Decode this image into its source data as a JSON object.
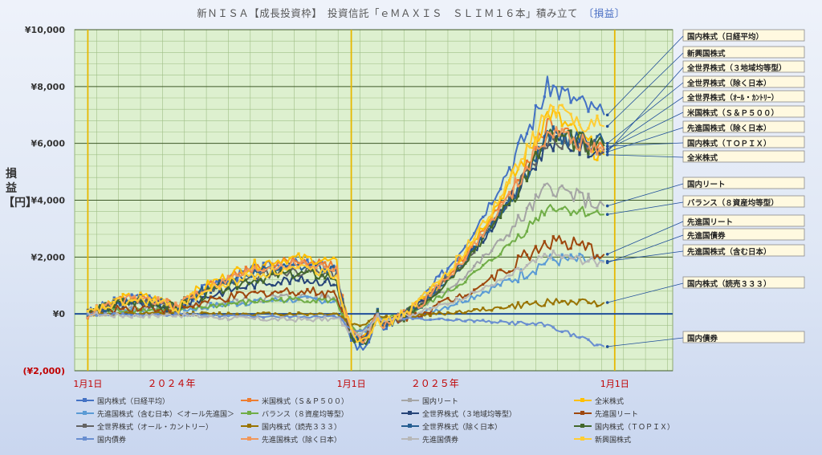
{
  "title": "新ＮＩＳＡ【成長投資枠】　投資信託「ｅＭＡＸＩＳ　ＳＬＩＭ１６本」積み立て",
  "title_tag": "〔損益〕",
  "chart_data": {
    "type": "line",
    "ylabel": "損益【円】",
    "ylim": [
      -2000,
      10000
    ],
    "yticks": [
      {
        "v": 10000,
        "label": "¥10,000"
      },
      {
        "v": 8000,
        "label": "¥8,000"
      },
      {
        "v": 6000,
        "label": "¥6,000"
      },
      {
        "v": 4000,
        "label": "¥4,000"
      },
      {
        "v": 2000,
        "label": "¥2,000"
      },
      {
        "v": 0,
        "label": "¥0"
      },
      {
        "v": -2000,
        "label": "(¥2,000)"
      }
    ],
    "xticks": [
      {
        "t": 0,
        "label": "1月1日"
      },
      {
        "t": 1,
        "label": "1月1日"
      },
      {
        "t": 2,
        "label": "1月1日"
      }
    ],
    "year_labels": [
      {
        "t": 0.5,
        "label": "２０２４年"
      },
      {
        "t": 1.5,
        "label": "２０２５年"
      }
    ],
    "xlim": [
      -0.05,
      2.22
    ],
    "grid": true,
    "series": [
      {
        "name": "国内株式（日経平均）",
        "color": "#4472c4",
        "end": 7000,
        "peak": 8050,
        "mid": 1750,
        "dip": -1700,
        "noise": 1.0
      },
      {
        "name": "米国株式（Ｓ＆Ｐ５００）",
        "color": "#ed7d31",
        "end": 5800,
        "peak": 6700,
        "mid": 1850,
        "dip": -1450,
        "noise": 0.8
      },
      {
        "name": "国内リート",
        "color": "#a5a5a5",
        "end": 3800,
        "peak": 4500,
        "mid": 600,
        "dip": -1100,
        "noise": 0.7
      },
      {
        "name": "全米株式",
        "color": "#ffc000",
        "end": 5600,
        "peak": 7100,
        "mid": 1950,
        "dip": -1450,
        "noise": 0.9
      },
      {
        "name": "先進国株式（含む日本）＜オール先進国＞",
        "color": "#5b9bd5",
        "end": 1850,
        "peak": 1900,
        "mid": 500,
        "dip": -900,
        "noise": 0.6
      },
      {
        "name": "バランス（８資産均等型）",
        "color": "#70ad47",
        "end": 3500,
        "peak": 3800,
        "mid": 500,
        "dip": -800,
        "noise": 0.5
      },
      {
        "name": "全世界株式（３地域均等型）",
        "color": "#264478",
        "end": 5700,
        "peak": 6100,
        "mid": 1200,
        "dip": -1300,
        "noise": 0.8
      },
      {
        "name": "先進国リート",
        "color": "#9e480e",
        "end": 2100,
        "peak": 2600,
        "mid": 800,
        "dip": -1000,
        "noise": 0.8
      },
      {
        "name": "全世界株式（オール・カントリー）",
        "color": "#636363",
        "end": 5800,
        "peak": 6200,
        "mid": 1500,
        "dip": -1350,
        "noise": 0.8
      },
      {
        "name": "国内株式（読売３３３）",
        "color": "#997300",
        "end": 400,
        "peak": 420,
        "mid": 0,
        "dip": -400,
        "noise": 0.3
      },
      {
        "name": "全世界株式（除く日本）",
        "color": "#255e91",
        "end": 6000,
        "peak": 6300,
        "mid": 1650,
        "dip": -1400,
        "noise": 0.8
      },
      {
        "name": "国内株式（ＴＯＰＩＸ）",
        "color": "#43682b",
        "end": 5900,
        "peak": 6200,
        "mid": 1400,
        "dip": -1500,
        "noise": 0.9
      },
      {
        "name": "国内債券",
        "color": "#698ed0",
        "end": -1150,
        "peak": -400,
        "mid": -100,
        "dip": -600,
        "noise": 0.2
      },
      {
        "name": "先進国株式（除く日本）",
        "color": "#f1975a",
        "end": 5700,
        "peak": 6500,
        "mid": 1750,
        "dip": -1400,
        "noise": 0.8
      },
      {
        "name": "先進国債券",
        "color": "#b7b7b7",
        "end": 1800,
        "peak": 2100,
        "mid": -200,
        "dip": -700,
        "noise": 0.4
      },
      {
        "name": "新興国株式",
        "color": "#ffcd33",
        "end": 6600,
        "peak": 7200,
        "mid": 1550,
        "dip": -1300,
        "noise": 0.9
      }
    ],
    "callouts": [
      {
        "label": "国内株式（日経平均）",
        "target": "国内株式（日経平均）"
      },
      {
        "label": "新興国株式",
        "target": "新興国株式"
      },
      {
        "label": "全世界株式（３地域均等型）",
        "target": "全世界株式（３地域均等型）"
      },
      {
        "label": "全世界株式（除く日本）",
        "target": "全世界株式（除く日本）"
      },
      {
        "label": "全世界株式（ｵｰﾙ・ｶﾝﾄﾘｰ）",
        "target": "全世界株式（オール・カントリー）"
      },
      {
        "label": "米国株式（Ｓ＆Ｐ５００）",
        "target": "米国株式（Ｓ＆Ｐ５００）"
      },
      {
        "label": "先進国株式（除く日本）",
        "target": "先進国株式（除く日本）"
      },
      {
        "label": "国内株式（ＴＯＰＩＸ）",
        "target": "国内株式（ＴＯＰＩＸ）"
      },
      {
        "label": "全米株式",
        "target": "全米株式"
      },
      {
        "label": "国内リート",
        "target": "国内リート"
      },
      {
        "label": "バランス（８資産均等型）",
        "target": "バランス（８資産均等型）"
      },
      {
        "label": "先進国リート",
        "target": "先進国リート"
      },
      {
        "label": "先進国債券",
        "target": "先進国債券"
      },
      {
        "label": "先進国株式（含む日本）",
        "target": "先進国株式（含む日本）＜オール先進国＞"
      },
      {
        "label": "国内株式（読売３３３）",
        "target": "国内株式（読売３３３）"
      },
      {
        "label": "国内債券",
        "target": "国内債券"
      }
    ]
  }
}
